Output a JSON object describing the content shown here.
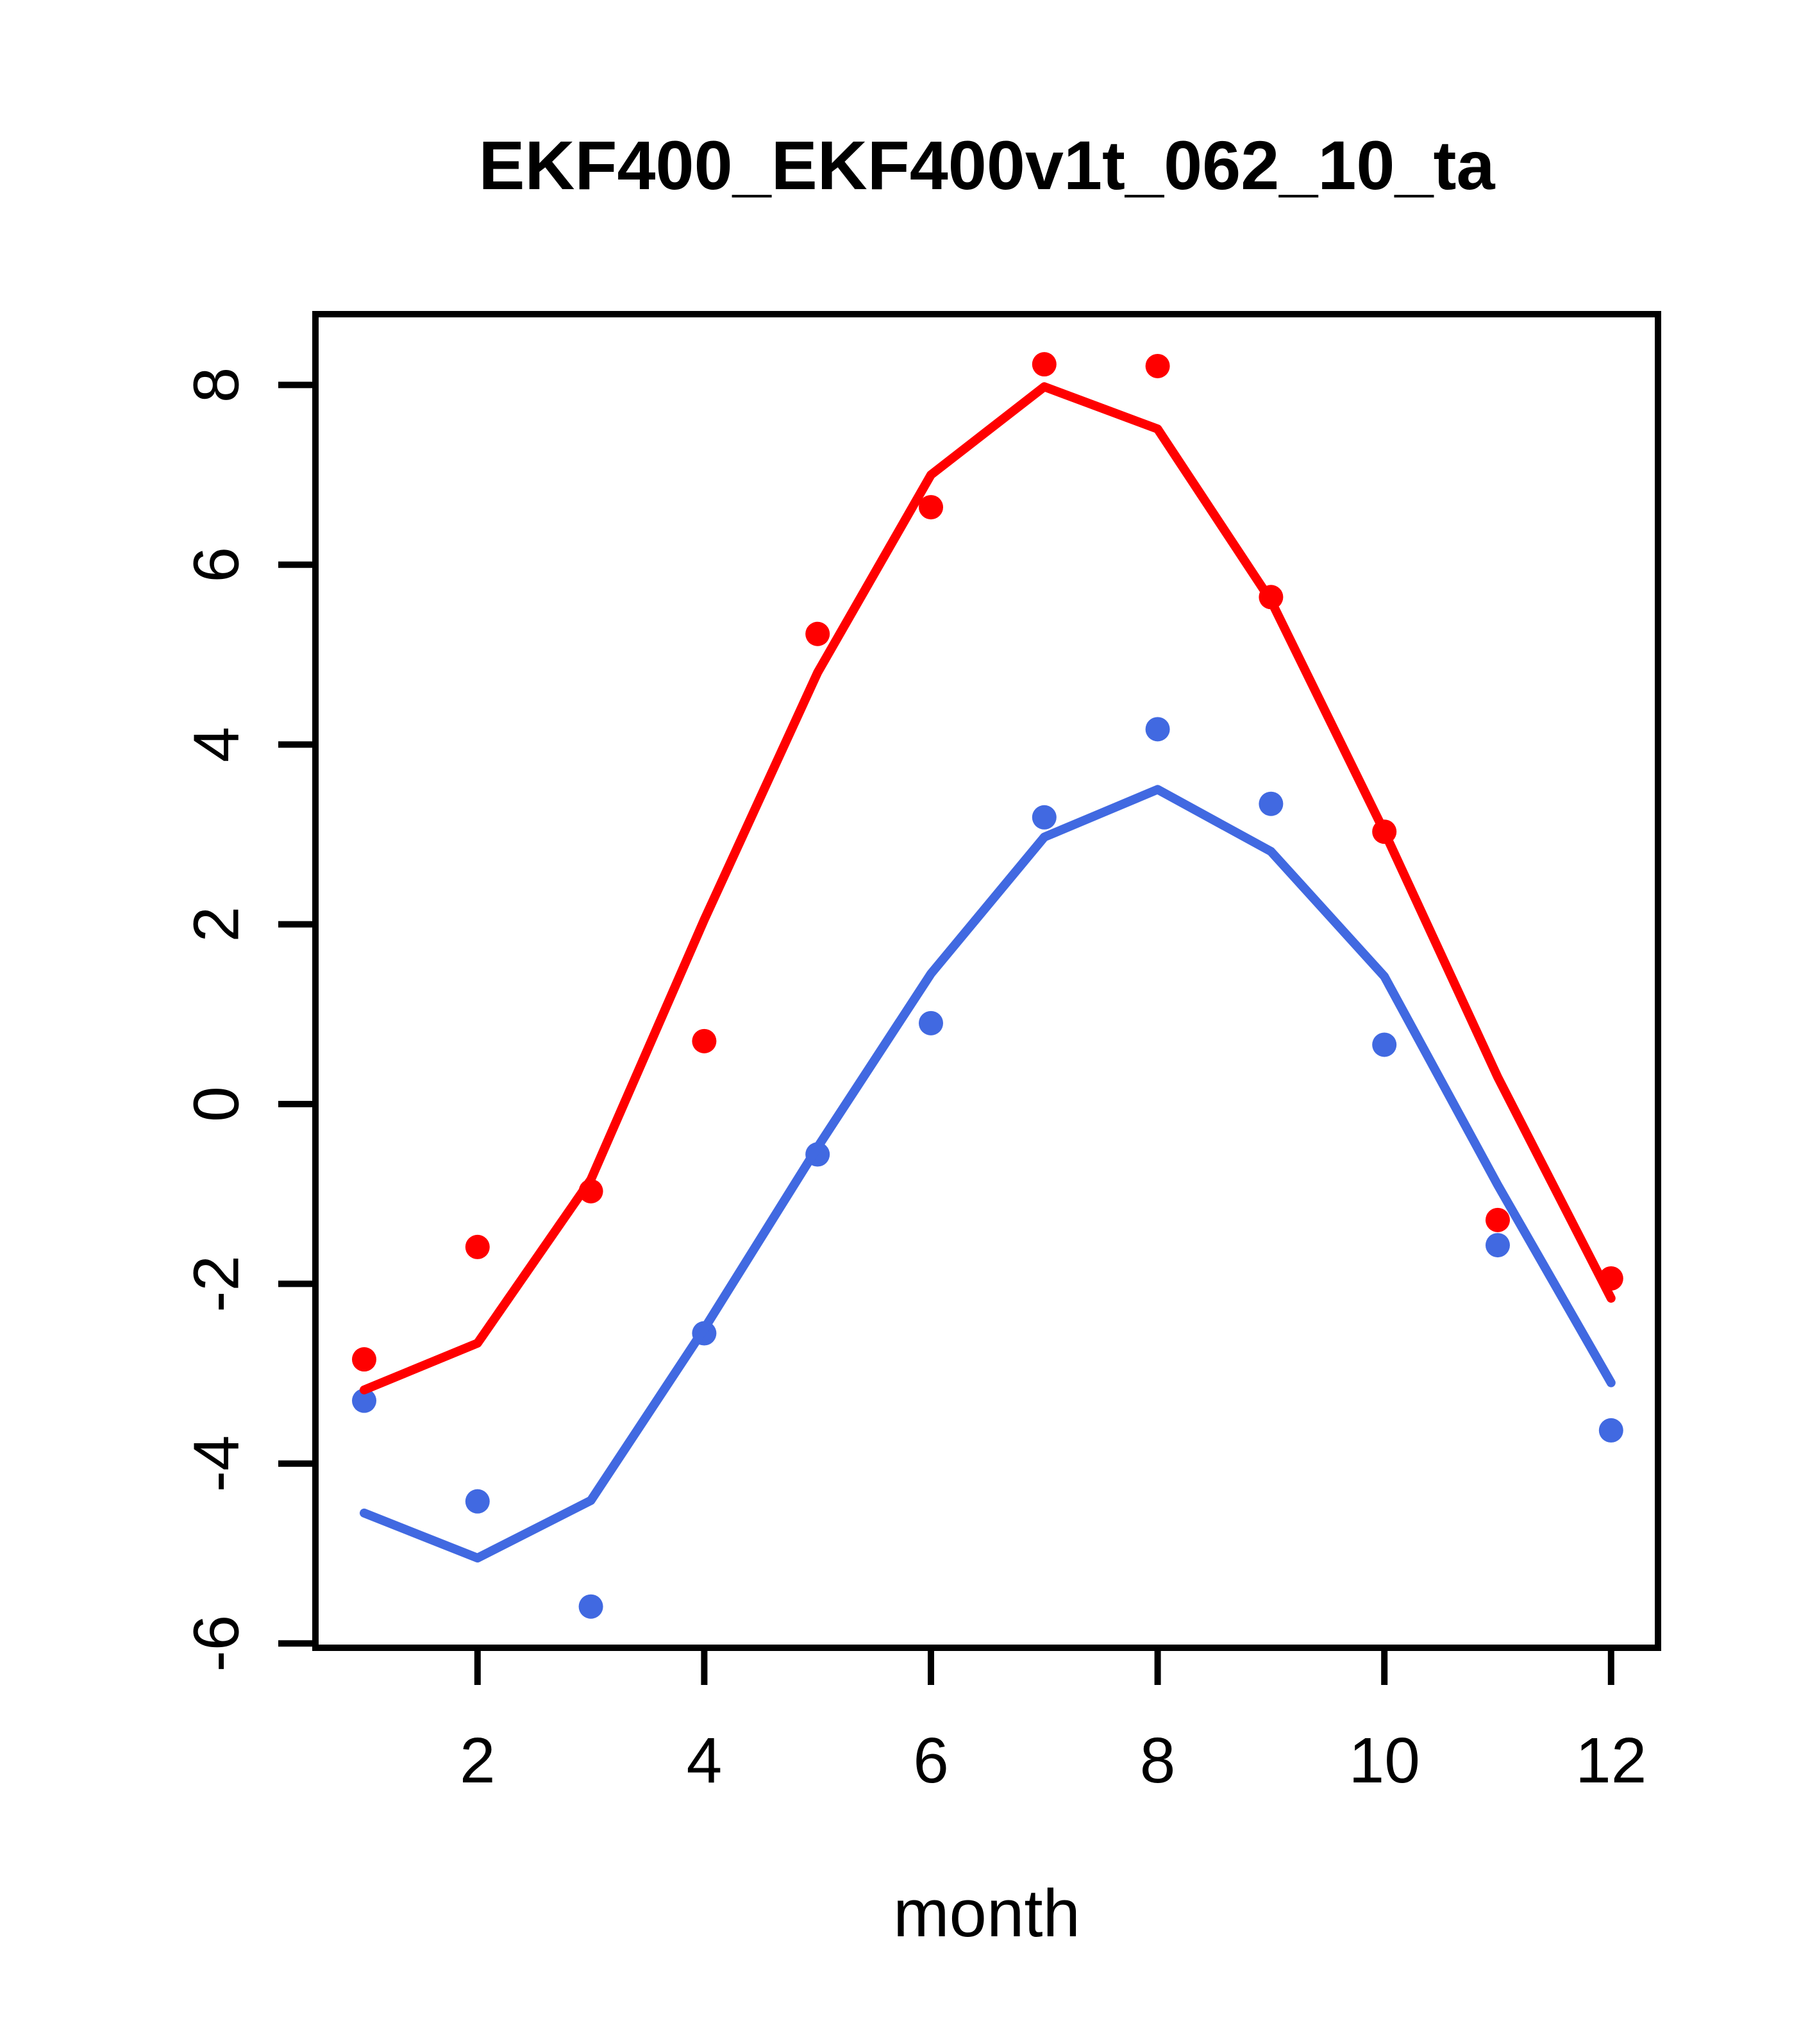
{
  "page": {
    "background": "#ffffff"
  },
  "chart_data": {
    "type": "line",
    "title": "EKF400_EKF400v1t_062_10_ta",
    "xlabel": "month",
    "ylabel": "",
    "x": [
      1,
      2,
      3,
      4,
      5,
      6,
      7,
      8,
      9,
      10,
      11,
      12
    ],
    "x_ticks": [
      2,
      4,
      6,
      8,
      10,
      12
    ],
    "y_ticks": [
      -6,
      -4,
      -2,
      0,
      2,
      4,
      6,
      8
    ],
    "xlim": [
      0.56,
      12.44
    ],
    "ylim": [
      -6.5,
      8.8
    ],
    "grid": "off",
    "legend": "none",
    "colors": {
      "red": "#FF0000",
      "blue": "#4169E1",
      "axis": "#000000"
    },
    "series": [
      {
        "name": "blue-points",
        "type": "scatter",
        "color": "#4169E1",
        "values": [
          -3.3,
          -4.42,
          -5.59,
          -2.55,
          -0.56,
          0.9,
          3.19,
          4.17,
          3.34,
          0.66,
          -1.57,
          -3.63
        ]
      },
      {
        "name": "red-points",
        "type": "scatter",
        "color": "#FF0000",
        "values": [
          -2.84,
          -1.59,
          -0.97,
          0.7,
          5.23,
          6.64,
          8.23,
          8.21,
          5.64,
          3.03,
          -1.29,
          -1.94
        ]
      },
      {
        "name": "blue-line",
        "type": "line",
        "color": "#4169E1",
        "values": [
          -4.55,
          -5.05,
          -4.41,
          -2.5,
          -0.48,
          1.45,
          2.97,
          3.5,
          2.81,
          1.42,
          -0.9,
          -3.1
        ]
      },
      {
        "name": "red-line",
        "type": "line",
        "color": "#FF0000",
        "values": [
          -3.18,
          -2.66,
          -0.84,
          2.05,
          4.8,
          7.0,
          7.98,
          7.51,
          5.6,
          3.03,
          0.3,
          -2.16
        ]
      }
    ]
  }
}
